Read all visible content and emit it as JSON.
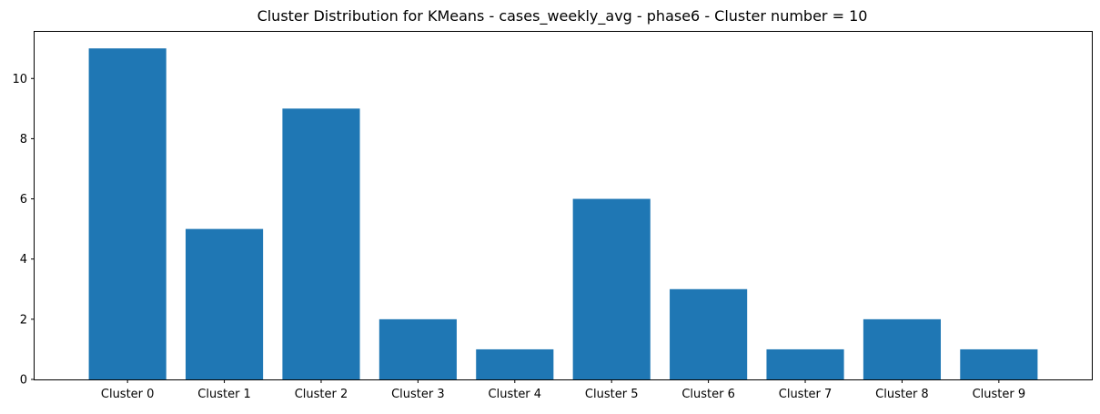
{
  "chart_data": {
    "type": "bar",
    "title": "Cluster Distribution for KMeans - cases_weekly_avg - phase6 - Cluster number = 10",
    "xlabel": "",
    "ylabel": "",
    "categories": [
      "Cluster 0",
      "Cluster 1",
      "Cluster 2",
      "Cluster 3",
      "Cluster 4",
      "Cluster 5",
      "Cluster 6",
      "Cluster 7",
      "Cluster 8",
      "Cluster 9"
    ],
    "values": [
      11,
      5,
      9,
      2,
      1,
      6,
      3,
      1,
      2,
      1
    ],
    "ylim": [
      0,
      11.55
    ],
    "yticks": [
      0,
      2,
      4,
      6,
      8,
      10
    ],
    "ytick_labels": [
      "0",
      "2",
      "4",
      "6",
      "8",
      "10"
    ],
    "grid": false,
    "colors": {
      "bar": "#1f77b4",
      "axes": "#000000"
    }
  }
}
